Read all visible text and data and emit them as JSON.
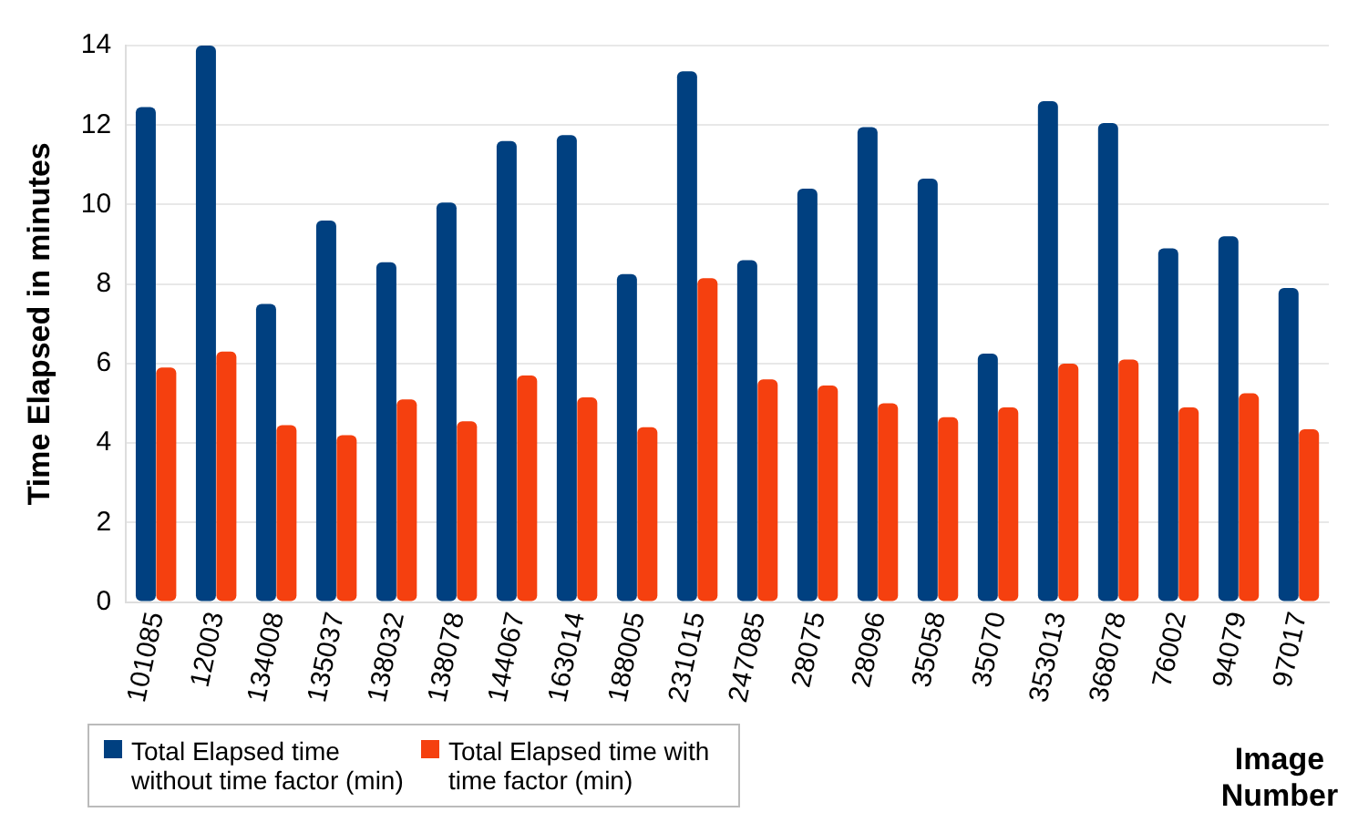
{
  "chart_data": {
    "type": "bar",
    "xlabel": "Image Number",
    "ylabel": "Time Elapsed in minutes",
    "categories": [
      "101085",
      "12003",
      "134008",
      "135037",
      "138032",
      "138078",
      "144067",
      "163014",
      "188005",
      "231015",
      "247085",
      "28075",
      "28096",
      "35058",
      "35070",
      "353013",
      "368078",
      "76002",
      "94079",
      "97017"
    ],
    "series": [
      {
        "name": "Total Elapsed time without time factor (min)",
        "color": "#004080",
        "values": [
          12.45,
          14.0,
          7.5,
          9.6,
          8.55,
          10.05,
          11.6,
          11.75,
          8.25,
          13.35,
          8.6,
          10.4,
          11.95,
          10.65,
          6.25,
          12.6,
          12.05,
          8.9,
          9.2,
          7.9
        ]
      },
      {
        "name": "Total Elapsed time with time factor (min)",
        "color": "#f5400f",
        "values": [
          5.9,
          6.3,
          4.45,
          4.2,
          5.1,
          4.55,
          5.7,
          5.15,
          4.4,
          8.15,
          5.6,
          5.45,
          5.0,
          4.65,
          4.9,
          6.0,
          6.1,
          4.9,
          5.25,
          4.35
        ]
      }
    ],
    "ylim": [
      0,
      14
    ],
    "yticks": [
      0,
      2,
      4,
      6,
      8,
      10,
      12,
      14
    ],
    "grid": "y",
    "legend": "bottom left"
  }
}
